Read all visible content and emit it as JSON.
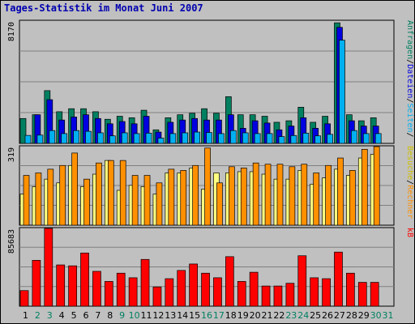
{
  "chart_data": [
    {
      "type": "bar",
      "title": "Tages-Statistik im Monat Juni 2007",
      "ymax_label": "8170",
      "ylabel": [
        "Anfragen",
        "Dateien",
        "Seiten"
      ],
      "categories": [
        "1",
        "2",
        "3",
        "4",
        "5",
        "6",
        "7",
        "8",
        "9",
        "10",
        "11",
        "12",
        "13",
        "14",
        "15",
        "16",
        "17",
        "18",
        "19",
        "20",
        "21",
        "22",
        "23",
        "24",
        "25",
        "26",
        "27",
        "28",
        "29",
        "30",
        "31"
      ],
      "series": [
        {
          "name": "Anfragen",
          "color": "#008060",
          "values": [
            1650,
            1900,
            3500,
            2100,
            2300,
            2300,
            2100,
            1600,
            1800,
            1700,
            2200,
            900,
            1700,
            1900,
            2000,
            2300,
            2000,
            3100,
            1900,
            1900,
            1800,
            1400,
            1500,
            2400,
            1400,
            1800,
            8000,
            1900,
            1500,
            1700,
            null
          ]
        },
        {
          "name": "Dateien",
          "color": "#0000e0",
          "values": [
            null,
            1900,
            2900,
            1550,
            1750,
            1900,
            1650,
            1300,
            1450,
            1300,
            1800,
            750,
            1400,
            1550,
            1650,
            1550,
            1550,
            1900,
            1000,
            1500,
            1350,
            900,
            1150,
            1700,
            1000,
            1300,
            7700,
            1500,
            1150,
            1150,
            null
          ]
        },
        {
          "name": "Seiten",
          "color": "#00b0f0",
          "values": [
            530,
            550,
            850,
            650,
            850,
            800,
            700,
            500,
            700,
            650,
            680,
            350,
            650,
            700,
            750,
            720,
            650,
            850,
            700,
            650,
            650,
            450,
            520,
            680,
            500,
            600,
            6850,
            850,
            650,
            650,
            null
          ]
        }
      ]
    },
    {
      "type": "bar",
      "ymax_label": "319",
      "ylabel": [
        "Besuche",
        "Rechner"
      ],
      "categories": [
        "1",
        "2",
        "3",
        "4",
        "5",
        "6",
        "7",
        "8",
        "9",
        "10",
        "11",
        "12",
        "13",
        "14",
        "15",
        "16",
        "17",
        "18",
        "19",
        "20",
        "21",
        "22",
        "23",
        "24",
        "25",
        "26",
        "27",
        "28",
        "29",
        "30",
        "31"
      ],
      "series": [
        {
          "name": "Besuche",
          "color": "#ffff80",
          "values": [
            125,
            155,
            185,
            170,
            240,
            155,
            205,
            260,
            140,
            160,
            155,
            125,
            210,
            210,
            230,
            145,
            210,
            210,
            215,
            215,
            205,
            185,
            185,
            220,
            165,
            190,
            225,
            200,
            270,
            285,
            null
          ]
        },
        {
          "name": "Rechner",
          "color": "#ff9000",
          "values": [
            200,
            210,
            225,
            240,
            290,
            185,
            250,
            260,
            260,
            200,
            200,
            170,
            225,
            220,
            240,
            310,
            170,
            235,
            230,
            250,
            245,
            245,
            235,
            245,
            210,
            240,
            270,
            220,
            305,
            320,
            null
          ]
        }
      ]
    },
    {
      "type": "bar",
      "ymax_label": "85683",
      "ylabel": [
        "kB"
      ],
      "categories": [
        "1",
        "2",
        "3",
        "4",
        "5",
        "6",
        "7",
        "8",
        "9",
        "10",
        "11",
        "12",
        "13",
        "14",
        "15",
        "16",
        "17",
        "18",
        "19",
        "20",
        "21",
        "22",
        "23",
        "24",
        "25",
        "26",
        "27",
        "28",
        "29",
        "30",
        "31"
      ],
      "series": [
        {
          "name": "kB",
          "color": "#ff0000",
          "values": [
            17000,
            50000,
            88000,
            45000,
            44000,
            58000,
            38000,
            27000,
            36000,
            31000,
            51000,
            21000,
            30000,
            39000,
            46000,
            36000,
            31000,
            54000,
            27000,
            37000,
            22000,
            22000,
            25000,
            55000,
            31000,
            30000,
            59000,
            36000,
            26000,
            26000,
            null
          ]
        }
      ]
    }
  ],
  "weekend_days": [
    2,
    3,
    9,
    10,
    16,
    17,
    23,
    24,
    30,
    31
  ],
  "colors": {
    "label_normal": "#000000",
    "label_weekend": "#008060",
    "grid": "#808080",
    "panel_bg": "#c0c0c0"
  }
}
